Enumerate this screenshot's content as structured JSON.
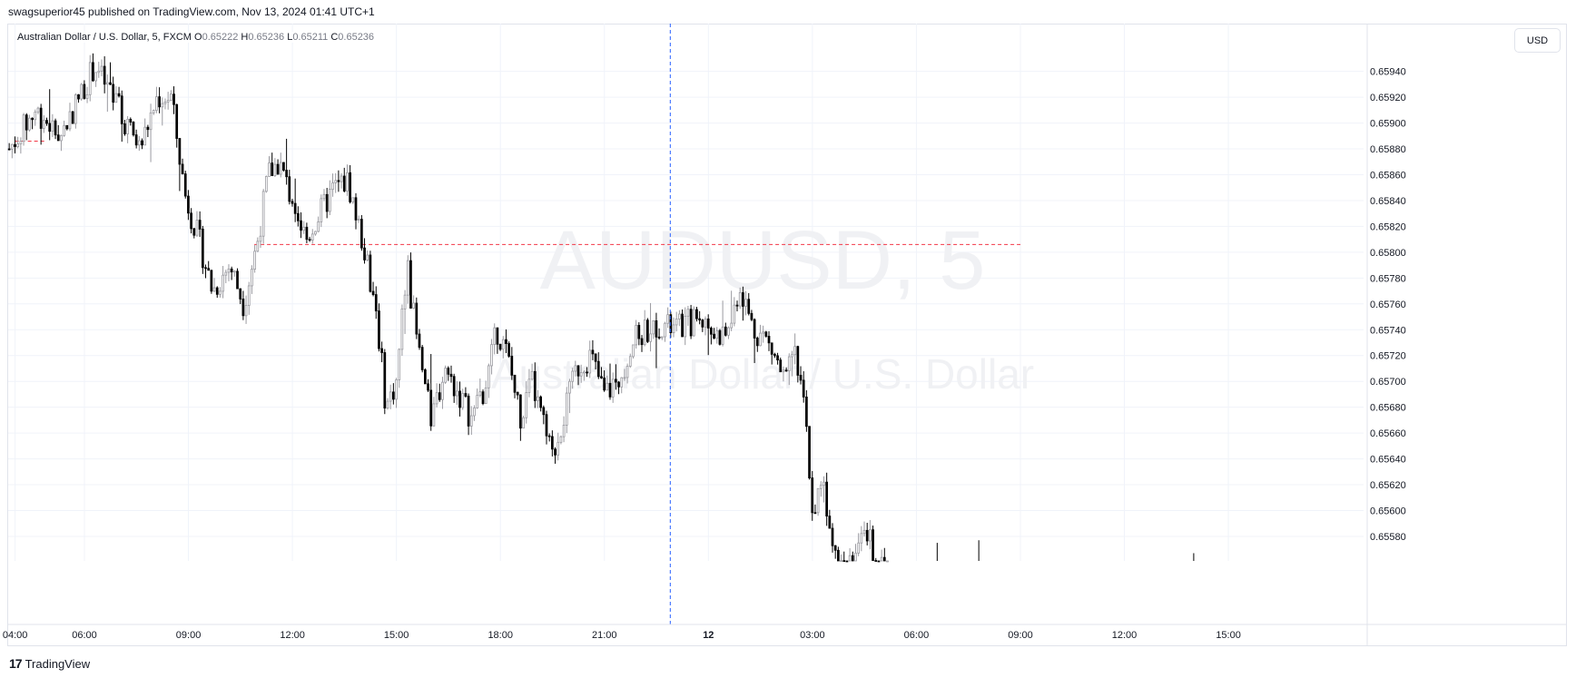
{
  "header": {
    "published_by": "swagsuperior45 published on TradingView.com, Nov 13, 2024 01:41 UTC+1"
  },
  "legend": {
    "symbol": "Australian Dollar / U.S. Dollar, 5, FXCM",
    "open_label": "O",
    "open": "0.65222",
    "high_label": "H",
    "high": "0.65236",
    "low_label": "L",
    "low": "0.65211",
    "close_label": "C",
    "close": "0.65236"
  },
  "currency_button": "USD",
  "watermark": {
    "symbol": "AUDUSD, 5",
    "name": "Australian Dollar / U.S. Dollar"
  },
  "footer": {
    "brand_logo": "17",
    "brand": "TradingView"
  },
  "colors": {
    "candle": "#000000",
    "candle_light": "#9a9aa0",
    "dashed_red": "#f23645",
    "dashed_blue": "#2962ff",
    "grid": "#f0f3fa"
  },
  "chart_data": {
    "type": "candlestick",
    "title": "",
    "xlabel": "",
    "ylabel": "",
    "ylim": [
      0.65561,
      0.65977
    ],
    "y_ticks": [
      0.6594,
      0.6592,
      0.659,
      0.6588,
      0.6586,
      0.6584,
      0.6582,
      0.658,
      0.6578,
      0.6576,
      0.6574,
      0.6572,
      0.657,
      0.6568,
      0.6566,
      0.6564,
      0.6562,
      0.656,
      0.6558
    ],
    "y_tick_labels": [
      "0.65940",
      "0.65920",
      "0.65900",
      "0.65880",
      "0.65860",
      "0.65840",
      "0.65820",
      "0.65800",
      "0.65780",
      "0.65760",
      "0.65740",
      "0.65720",
      "0.65700",
      "0.65680",
      "0.65660",
      "0.65640",
      "0.65620",
      "0.65600",
      "0.65580"
    ],
    "x_ticks": [
      {
        "label": "04:00",
        "hour": 4
      },
      {
        "label": "06:00",
        "hour": 6
      },
      {
        "label": "09:00",
        "hour": 9
      },
      {
        "label": "12:00",
        "hour": 12
      },
      {
        "label": "15:00",
        "hour": 15
      },
      {
        "label": "18:00",
        "hour": 18
      },
      {
        "label": "21:00",
        "hour": 21
      },
      {
        "label": "12",
        "hour": 24
      },
      {
        "label": "03:00",
        "hour": 27
      },
      {
        "label": "06:00",
        "hour": 30
      },
      {
        "label": "09:00",
        "hour": 33
      },
      {
        "label": "12:00",
        "hour": 36
      },
      {
        "label": "15:00",
        "hour": 39
      }
    ],
    "x_range_hours": [
      3.8,
      42.9
    ],
    "horizontal_levels": [
      {
        "price": 0.65886,
        "from_hour": 4.0,
        "to_hour": 4.9
      },
      {
        "price": 0.65806,
        "from_hour": 10.9,
        "to_hour": 33.0
      }
    ],
    "vertical_marker_hour": 22.9,
    "anchors": [
      [
        3.83,
        0.6588
      ],
      [
        4.6,
        0.6591
      ],
      [
        5.3,
        0.6589
      ],
      [
        5.85,
        0.6592
      ],
      [
        6.3,
        0.65945
      ],
      [
        6.7,
        0.65925
      ],
      [
        7.2,
        0.659
      ],
      [
        7.6,
        0.6588
      ],
      [
        8.1,
        0.6592
      ],
      [
        8.5,
        0.6592
      ],
      [
        8.9,
        0.65845
      ],
      [
        9.3,
        0.6581
      ],
      [
        9.7,
        0.6577
      ],
      [
        10.2,
        0.6579
      ],
      [
        10.6,
        0.6576
      ],
      [
        11.0,
        0.6581
      ],
      [
        11.3,
        0.6586
      ],
      [
        11.6,
        0.6587
      ],
      [
        12.0,
        0.6584
      ],
      [
        12.4,
        0.6581
      ],
      [
        12.8,
        0.6583
      ],
      [
        13.2,
        0.6585
      ],
      [
        13.6,
        0.65855
      ],
      [
        14.0,
        0.6581
      ],
      [
        14.4,
        0.6576
      ],
      [
        14.7,
        0.6568
      ],
      [
        15.0,
        0.657
      ],
      [
        15.3,
        0.6579
      ],
      [
        15.6,
        0.6573
      ],
      [
        16.0,
        0.6567
      ],
      [
        16.4,
        0.6571
      ],
      [
        16.8,
        0.6569
      ],
      [
        17.2,
        0.6567
      ],
      [
        17.6,
        0.657
      ],
      [
        17.9,
        0.6574
      ],
      [
        18.2,
        0.6572
      ],
      [
        18.6,
        0.6567
      ],
      [
        18.9,
        0.657
      ],
      [
        19.2,
        0.6567
      ],
      [
        19.5,
        0.6564
      ],
      [
        19.9,
        0.6568
      ],
      [
        20.2,
        0.6571
      ],
      [
        20.6,
        0.6572
      ],
      [
        21.0,
        0.6569
      ],
      [
        21.4,
        0.657
      ],
      [
        21.8,
        0.6573
      ],
      [
        22.2,
        0.6574
      ],
      [
        22.6,
        0.65745
      ],
      [
        23.0,
        0.6574
      ],
      [
        23.4,
        0.65745
      ],
      [
        23.8,
        0.6575
      ],
      [
        24.2,
        0.65735
      ],
      [
        24.6,
        0.6574
      ],
      [
        24.9,
        0.65775
      ],
      [
        25.3,
        0.6574
      ],
      [
        25.6,
        0.65735
      ],
      [
        25.9,
        0.6572
      ],
      [
        26.2,
        0.657
      ],
      [
        26.5,
        0.6572
      ],
      [
        26.8,
        0.6567
      ],
      [
        27.0,
        0.656
      ],
      [
        27.3,
        0.6562
      ],
      [
        27.6,
        0.6558
      ],
      [
        27.9,
        0.6556
      ],
      [
        28.3,
        0.6557
      ],
      [
        28.6,
        0.6558
      ],
      [
        28.9,
        0.6556
      ],
      [
        29.2,
        0.65561
      ]
    ],
    "late_ticks": [
      {
        "hour": 30.6,
        "low": 0.65561,
        "high": 0.65575
      },
      {
        "hour": 31.8,
        "low": 0.65561,
        "high": 0.65577
      },
      {
        "hour": 38.0,
        "low": 0.65561,
        "high": 0.65567
      }
    ]
  }
}
